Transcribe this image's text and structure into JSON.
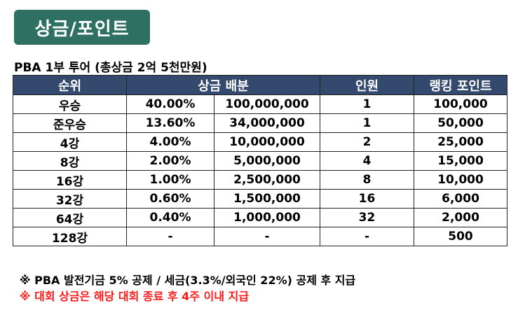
{
  "title": "상금/포인트",
  "subtitle": "PBA 1부 투어 (총상금 2억 5천만원)",
  "colors": {
    "title_bg": "#2e7062",
    "header_bg": "#34496e",
    "highlight_note": "#ff1a1a"
  },
  "table": {
    "headers": {
      "rank": "순위",
      "prize": "상금 배분",
      "players": "인원",
      "points": "랭킹 포인트"
    },
    "rows": [
      {
        "rank": "우승",
        "percent": "40.00%",
        "amount": "100,000,000",
        "players": "1",
        "points": "100,000"
      },
      {
        "rank": "준우승",
        "percent": "13.60%",
        "amount": "34,000,000",
        "players": "1",
        "points": "50,000"
      },
      {
        "rank": "4강",
        "percent": "4.00%",
        "amount": "10,000,000",
        "players": "2",
        "points": "25,000"
      },
      {
        "rank": "8강",
        "percent": "2.00%",
        "amount": "5,000,000",
        "players": "4",
        "points": "15,000"
      },
      {
        "rank": "16강",
        "percent": "1.00%",
        "amount": "2,500,000",
        "players": "8",
        "points": "10,000"
      },
      {
        "rank": "32강",
        "percent": "0.60%",
        "amount": "1,500,000",
        "players": "16",
        "points": "6,000"
      },
      {
        "rank": "64강",
        "percent": "0.40%",
        "amount": "1,000,000",
        "players": "32",
        "points": "2,000"
      },
      {
        "rank": "128강",
        "percent": "-",
        "amount": "-",
        "players": "-",
        "points": "500"
      }
    ]
  },
  "notes": [
    "※ PBA 발전기금 5% 공제 / 세금(3.3%/외국인 22%) 공제 후 지급",
    "※ 대회 상금은 해당 대회 종료 후 4주 이내 지급"
  ]
}
